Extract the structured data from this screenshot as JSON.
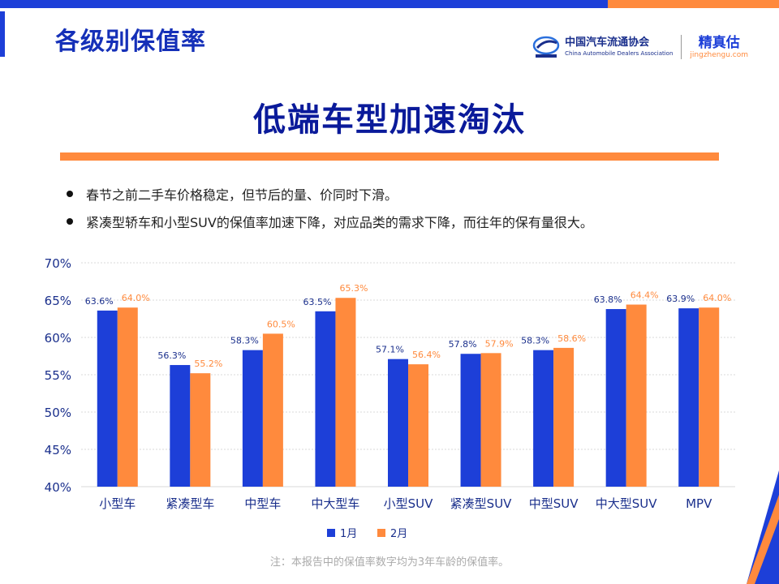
{
  "header": {
    "page_title": "各级别保值率",
    "association_name_cn": "中国汽车流通协会",
    "association_name_en": "China Automobile Dealers Association",
    "brand_name": "精真估",
    "brand_url": "jingzhengu.com"
  },
  "headline": "低端车型加速淘汰",
  "bullets": [
    "春节之前二手车价格稳定，但节后的量、价同时下滑。",
    "紧凑型轿车和小型SUV的保值率加速下降，对应品类的需求下降，而往年的保有量很大。"
  ],
  "footnote": "注：本报告中的保值率数字均为3年车龄的保值率。",
  "colors": {
    "series1": "#1d3fd8",
    "series2": "#ff8a3d",
    "accent_blue": "#1530b8",
    "accent_orange": "#ff8a3d"
  },
  "chart_data": {
    "type": "bar",
    "categories": [
      "小型车",
      "紧凑型车",
      "中型车",
      "中大型车",
      "小型SUV",
      "紧凑型SUV",
      "中型SUV",
      "中大型SUV",
      "MPV"
    ],
    "series": [
      {
        "name": "1月",
        "values": [
          63.6,
          56.3,
          58.3,
          63.5,
          57.1,
          57.8,
          58.3,
          63.8,
          63.9
        ],
        "labels": [
          "63.6%",
          "56.3%",
          "58.3%",
          "63.5%",
          "57.1%",
          "57.8%",
          "58.3%",
          "63.8%",
          "63.9%"
        ]
      },
      {
        "name": "2月",
        "values": [
          64.0,
          55.2,
          60.5,
          65.3,
          56.4,
          57.9,
          58.6,
          64.4,
          64.0
        ],
        "labels": [
          "64.0%",
          "55.2%",
          "60.5%",
          "65.3%",
          "56.4%",
          "57.9%",
          "58.6%",
          "64.4%",
          "64.0%"
        ]
      }
    ],
    "ylim": [
      40,
      70
    ],
    "y_ticks": [
      40,
      45,
      50,
      55,
      60,
      65,
      70
    ],
    "y_tick_labels": [
      "40%",
      "45%",
      "50%",
      "55%",
      "60%",
      "65%",
      "70%"
    ],
    "grid": true,
    "legend_position": "bottom"
  }
}
